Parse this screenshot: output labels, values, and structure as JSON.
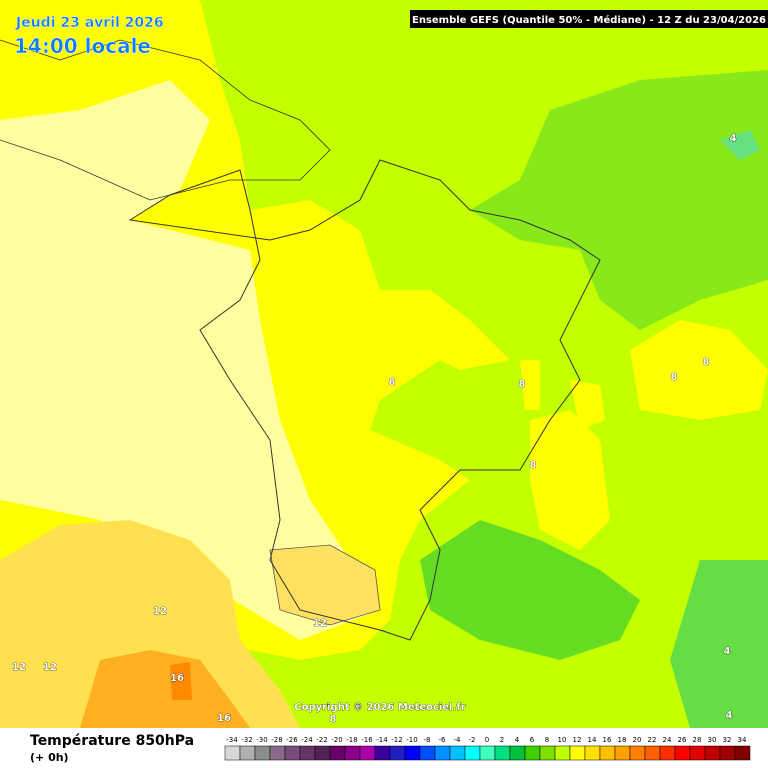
{
  "header": {
    "date": "Jeudi 23 avril 2026",
    "time": "14:00 locale",
    "model": "Ensemble GEFS  (Quantile 50% - Médiane) - 12 Z du 23/04/2026"
  },
  "map": {
    "contour_labels": [
      "4",
      "4",
      "4",
      "8",
      "8",
      "8",
      "8",
      "8",
      "8",
      "12",
      "12",
      "12",
      "12",
      "16",
      "16"
    ],
    "copyright": "Copyright © 2026 Meteociel.fr"
  },
  "footer": {
    "title": "Température 850hPa",
    "subtitle": "(+ 0h)",
    "scale": {
      "labels": [
        "-34",
        "-32",
        "-30",
        "-28",
        "-26",
        "-24",
        "-22",
        "-20",
        "-18",
        "-16",
        "-14",
        "-12",
        "-10",
        "-8",
        "-6",
        "-4",
        "-2",
        "0",
        "2",
        "4",
        "6",
        "8",
        "10",
        "12",
        "14",
        "16",
        "18",
        "20",
        "22",
        "24",
        "26",
        "28",
        "30",
        "32",
        "34"
      ],
      "colors": [
        "#d8d8d8",
        "#b0b0b0",
        "#8c8c8c",
        "#8a6a8a",
        "#7a4a7a",
        "#663366",
        "#552255",
        "#6a006a",
        "#8a008a",
        "#aa00aa",
        "#3c00a0",
        "#2020c0",
        "#0000ff",
        "#0050ff",
        "#0090ff",
        "#00c0ff",
        "#00ffff",
        "#40ffc0",
        "#00e080",
        "#00c040",
        "#40d000",
        "#80e000",
        "#c0ff00",
        "#ffff00",
        "#ffe000",
        "#ffc000",
        "#ffa000",
        "#ff8000",
        "#ff6000",
        "#ff3000",
        "#ff0000",
        "#e00000",
        "#c00000",
        "#a00000",
        "#800000"
      ]
    }
  }
}
